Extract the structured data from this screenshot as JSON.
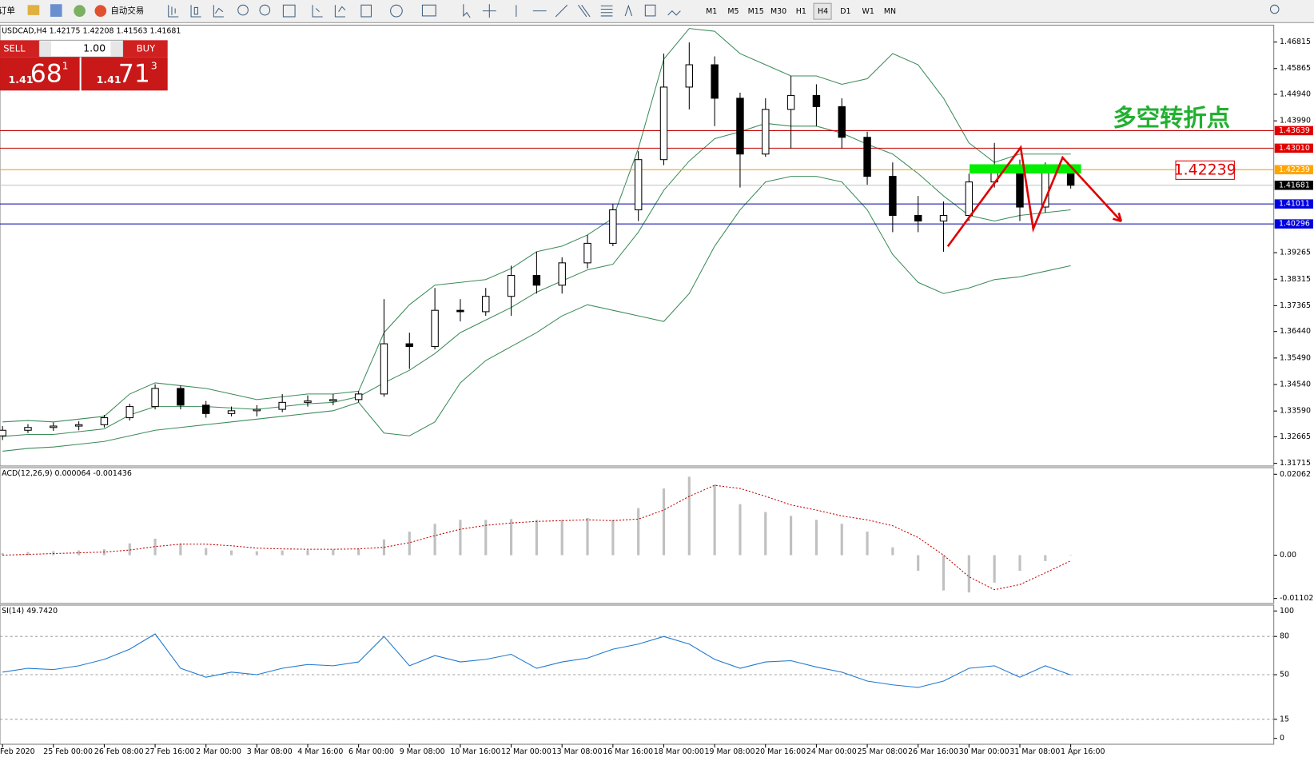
{
  "toolbar": {
    "orders": "订单",
    "auto_trading": "自动交易",
    "timeframes": [
      "M1",
      "M5",
      "M15",
      "M30",
      "H1",
      "H4",
      "D1",
      "W1",
      "MN"
    ]
  },
  "trade_panel": {
    "sell": "SELL",
    "buy": "BUY",
    "lot": "1.00",
    "sell_price": {
      "prefix": "1.41",
      "big": "68",
      "sup": "1"
    },
    "buy_price": {
      "prefix": "1.41",
      "big": "71",
      "sup": "3"
    }
  },
  "chart_data": [
    {
      "type": "candlestick",
      "title": "USDCAD,H4 1.42175 1.42208 1.41563 1.41681",
      "categories": [
        "Feb 2020",
        null,
        "25 Feb 00:00",
        null,
        "26 Feb 08:00",
        null,
        "27 Feb 16:00",
        null,
        "2 Mar 00:00",
        null,
        "3 Mar 08:00",
        null,
        "4 Mar 16:00",
        null,
        "6 Mar 00:00",
        null,
        "9 Mar 08:00",
        null,
        "10 Mar 16:00",
        null,
        "12 Mar 00:00",
        null,
        "13 Mar 08:00",
        null,
        "16 Mar 16:00",
        null,
        "18 Mar 00:00",
        null,
        "19 Mar 08:00",
        null,
        "20 Mar 16:00",
        null,
        "24 Mar 00:00",
        null,
        "25 Mar 08:00",
        null,
        "26 Mar 16:00",
        null,
        "30 Mar 00:00",
        null,
        "31 Mar 08:00",
        null,
        "1 Apr 16:00"
      ],
      "open": [
        1.327,
        1.329,
        1.33,
        1.3305,
        1.331,
        1.3335,
        1.3375,
        1.344,
        1.338,
        1.335,
        1.336,
        1.3365,
        1.339,
        1.3395,
        1.34,
        1.342,
        1.36,
        1.359,
        1.372,
        1.3715,
        1.377,
        1.3845,
        1.381,
        1.389,
        1.396,
        1.408,
        1.426,
        1.452,
        1.46,
        1.448,
        1.428,
        1.444,
        1.449,
        1.445,
        1.434,
        1.42,
        1.406,
        1.404,
        1.406,
        1.418,
        1.423,
        1.409,
        1.42175
      ],
      "high": [
        1.3305,
        1.3312,
        1.3318,
        1.3322,
        1.3345,
        1.3385,
        1.3455,
        1.345,
        1.3395,
        1.3375,
        1.338,
        1.342,
        1.3415,
        1.342,
        1.343,
        1.376,
        1.364,
        1.38,
        1.376,
        1.38,
        1.388,
        1.393,
        1.391,
        1.399,
        1.41,
        1.429,
        1.464,
        1.468,
        1.463,
        1.45,
        1.448,
        1.456,
        1.453,
        1.448,
        1.436,
        1.425,
        1.413,
        1.411,
        1.421,
        1.432,
        1.426,
        1.425,
        1.42208
      ],
      "low": [
        1.3255,
        1.328,
        1.3288,
        1.329,
        1.33,
        1.3325,
        1.3365,
        1.3365,
        1.3335,
        1.334,
        1.334,
        1.3355,
        1.3375,
        1.338,
        1.339,
        1.341,
        1.351,
        1.358,
        1.368,
        1.37,
        1.37,
        1.378,
        1.378,
        1.387,
        1.395,
        1.404,
        1.424,
        1.444,
        1.438,
        1.416,
        1.427,
        1.43,
        1.438,
        1.43,
        1.417,
        1.4,
        1.4,
        1.393,
        1.404,
        1.416,
        1.404,
        1.407,
        1.41563
      ],
      "close": [
        1.329,
        1.33,
        1.3305,
        1.331,
        1.3335,
        1.3375,
        1.344,
        1.338,
        1.335,
        1.336,
        1.3365,
        1.339,
        1.3395,
        1.34,
        1.342,
        1.36,
        1.359,
        1.372,
        1.3715,
        1.377,
        1.3845,
        1.381,
        1.389,
        1.396,
        1.408,
        1.426,
        1.452,
        1.46,
        1.448,
        1.428,
        1.444,
        1.449,
        1.445,
        1.434,
        1.42,
        1.406,
        1.404,
        1.406,
        1.418,
        1.423,
        1.409,
        1.422,
        1.41681
      ],
      "bands": {
        "color": "#3c8c5a",
        "upper": [
          1.332,
          1.3325,
          1.332,
          1.333,
          1.334,
          1.342,
          1.346,
          1.345,
          1.344,
          1.342,
          1.34,
          1.341,
          1.342,
          1.342,
          1.343,
          1.364,
          1.374,
          1.381,
          1.382,
          1.383,
          1.387,
          1.393,
          1.395,
          1.399,
          1.405,
          1.43,
          1.462,
          1.473,
          1.472,
          1.464,
          1.46,
          1.456,
          1.456,
          1.453,
          1.455,
          1.464,
          1.46,
          1.448,
          1.432,
          1.425,
          1.428,
          1.428,
          1.428
        ],
        "middle": [
          1.3268,
          1.3275,
          1.3275,
          1.3285,
          1.3295,
          1.3345,
          1.3375,
          1.3375,
          1.3375,
          1.337,
          1.3365,
          1.3375,
          1.3385,
          1.339,
          1.341,
          1.346,
          1.3505,
          1.3565,
          1.364,
          1.3685,
          1.373,
          1.3785,
          1.3825,
          1.3865,
          1.3885,
          1.4,
          1.415,
          1.4255,
          1.4335,
          1.436,
          1.439,
          1.438,
          1.438,
          1.4355,
          1.4315,
          1.428,
          1.421,
          1.413,
          1.406,
          1.404,
          1.406,
          1.407,
          1.408
        ],
        "lower": [
          1.3215,
          1.3225,
          1.323,
          1.324,
          1.325,
          1.327,
          1.329,
          1.33,
          1.331,
          1.332,
          1.333,
          1.334,
          1.335,
          1.336,
          1.339,
          1.328,
          1.327,
          1.332,
          1.346,
          1.354,
          1.359,
          1.364,
          1.37,
          1.374,
          1.372,
          1.37,
          1.368,
          1.378,
          1.395,
          1.408,
          1.418,
          1.42,
          1.42,
          1.418,
          1.408,
          1.392,
          1.382,
          1.378,
          1.38,
          1.383,
          1.384,
          1.386,
          1.388
        ]
      },
      "levels": [
        {
          "value": 1.43639,
          "line_color": "#c00000",
          "label_color": "#e00000"
        },
        {
          "value": 1.4301,
          "label": "1.43010",
          "line_color": "#c00000",
          "label_color": "#e00000"
        },
        {
          "value": 1.42239,
          "line_color": "#ffa500",
          "label_color": "#ffa500"
        },
        {
          "value": 1.41681,
          "line_color": "#c0c0c0",
          "label_color": "#000000"
        },
        {
          "value": 1.41011,
          "line_color": "#0000a0",
          "label_color": "#0000e0"
        },
        {
          "value": 1.40296,
          "line_color": "#0000a0",
          "label_color": "#0000e0"
        }
      ],
      "annotations": {
        "signal_text": "多空转折点",
        "price_box": "1.42239"
      },
      "ylim": [
        1.3162,
        1.4742
      ],
      "yticks": [
        1.46815,
        1.45865,
        {
          "value": 1.4494,
          "label": "1.44940"
        },
        {
          "value": 1.4399,
          "label": "1.43990"
        },
        1.39265,
        1.38315,
        1.37365,
        {
          "value": 1.3644,
          "label": "1.36440"
        },
        {
          "value": 1.3549,
          "label": "1.35490"
        },
        {
          "value": 1.3454,
          "label": "1.34540"
        },
        {
          "value": 1.3359,
          "label": "1.33590"
        },
        1.32665,
        1.31715
      ]
    },
    {
      "type": "macd",
      "title": "ACD(12,26,9) 0.000064 -0.001436",
      "histogram": [
        0.0005,
        0.0008,
        0.001,
        0.0012,
        0.0015,
        0.003,
        0.0042,
        0.003,
        0.0018,
        0.0012,
        0.001,
        0.0012,
        0.0013,
        0.0014,
        0.0016,
        0.004,
        0.006,
        0.008,
        0.009,
        0.009,
        0.0092,
        0.009,
        0.009,
        0.0095,
        0.009,
        0.012,
        0.017,
        0.02,
        0.018,
        0.013,
        0.011,
        0.01,
        0.009,
        0.008,
        0.006,
        0.002,
        -0.004,
        -0.009,
        -0.0095,
        -0.007,
        -0.004,
        -0.0015,
        6.4e-05
      ],
      "signal": [
        0,
        0.0002,
        0.0004,
        0.0006,
        0.0008,
        0.0013,
        0.0022,
        0.0028,
        0.0028,
        0.0024,
        0.0018,
        0.0016,
        0.0015,
        0.0015,
        0.0016,
        0.002,
        0.0032,
        0.005,
        0.0066,
        0.0076,
        0.0082,
        0.0086,
        0.0088,
        0.009,
        0.0088,
        0.0092,
        0.0115,
        0.015,
        0.0178,
        0.017,
        0.015,
        0.0128,
        0.0115,
        0.01,
        0.009,
        0.0075,
        0.0045,
        0,
        -0.0055,
        -0.0088,
        -0.0075,
        -0.0045,
        -0.001436
      ],
      "histogram_color": "#c0c0c0",
      "signal_color": "#c00000",
      "ylim": [
        -0.0123,
        0.0223
      ],
      "yticks": [
        0.02062,
        {
          "value": 0,
          "label": "0.00"
        },
        -0.011023
      ]
    },
    {
      "type": "line",
      "title": "SI(14) 49.7420",
      "values": [
        52,
        55,
        54,
        57,
        62,
        70,
        82,
        55,
        48,
        52,
        50,
        55,
        58,
        57,
        60,
        80,
        57,
        65,
        60,
        62,
        66,
        55,
        60,
        63,
        70,
        74,
        80,
        74,
        62,
        55,
        60,
        61,
        56,
        52,
        45,
        42,
        40,
        45,
        55,
        57,
        48,
        57,
        49.742
      ],
      "color": "#1e78d0",
      "ylim": [
        -4.6,
        104.6
      ],
      "yticks": [
        100,
        80,
        50,
        15,
        0
      ]
    }
  ]
}
